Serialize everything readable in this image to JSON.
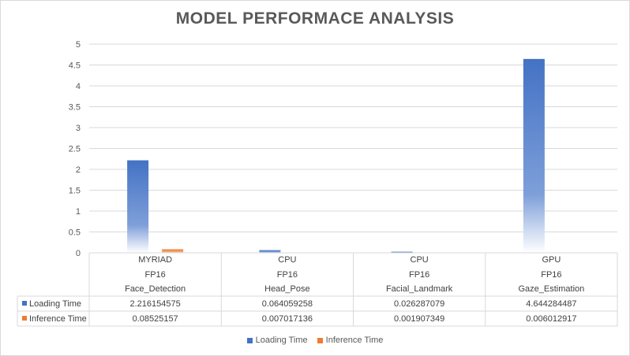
{
  "chart_data": {
    "type": "bar",
    "title": "MODEL PERFORMACE ANALYSIS",
    "categories": [
      {
        "device": "MYRIAD",
        "precision": "FP16",
        "model": "Face_Detection"
      },
      {
        "device": "CPU",
        "precision": "FP16",
        "model": "Head_Pose"
      },
      {
        "device": "CPU",
        "precision": "FP16",
        "model": "Facial_Landmark"
      },
      {
        "device": "GPU",
        "precision": "FP16",
        "model": "Gaze_Estimation"
      }
    ],
    "series": [
      {
        "name": "Loading Time",
        "color": "#4472c4",
        "values": [
          2.216154575,
          0.064059258,
          0.026287079,
          4.644284487
        ],
        "labels": [
          "2.216154575",
          "0.064059258",
          "0.026287079",
          "4.644284487"
        ]
      },
      {
        "name": "Inference Time",
        "color": "#ed7d31",
        "values": [
          0.08525157,
          0.007017136,
          0.001907349,
          0.006012917
        ],
        "labels": [
          "0.08525157",
          "0.007017136",
          "0.001907349",
          "0.006012917"
        ]
      }
    ],
    "ylim": [
      0,
      5
    ],
    "yticks": [
      "0",
      "0.5",
      "1",
      "1.5",
      "2",
      "2.5",
      "3",
      "3.5",
      "4",
      "4.5",
      "5"
    ],
    "grid": true,
    "data_table": true,
    "legend_position": "bottom"
  }
}
